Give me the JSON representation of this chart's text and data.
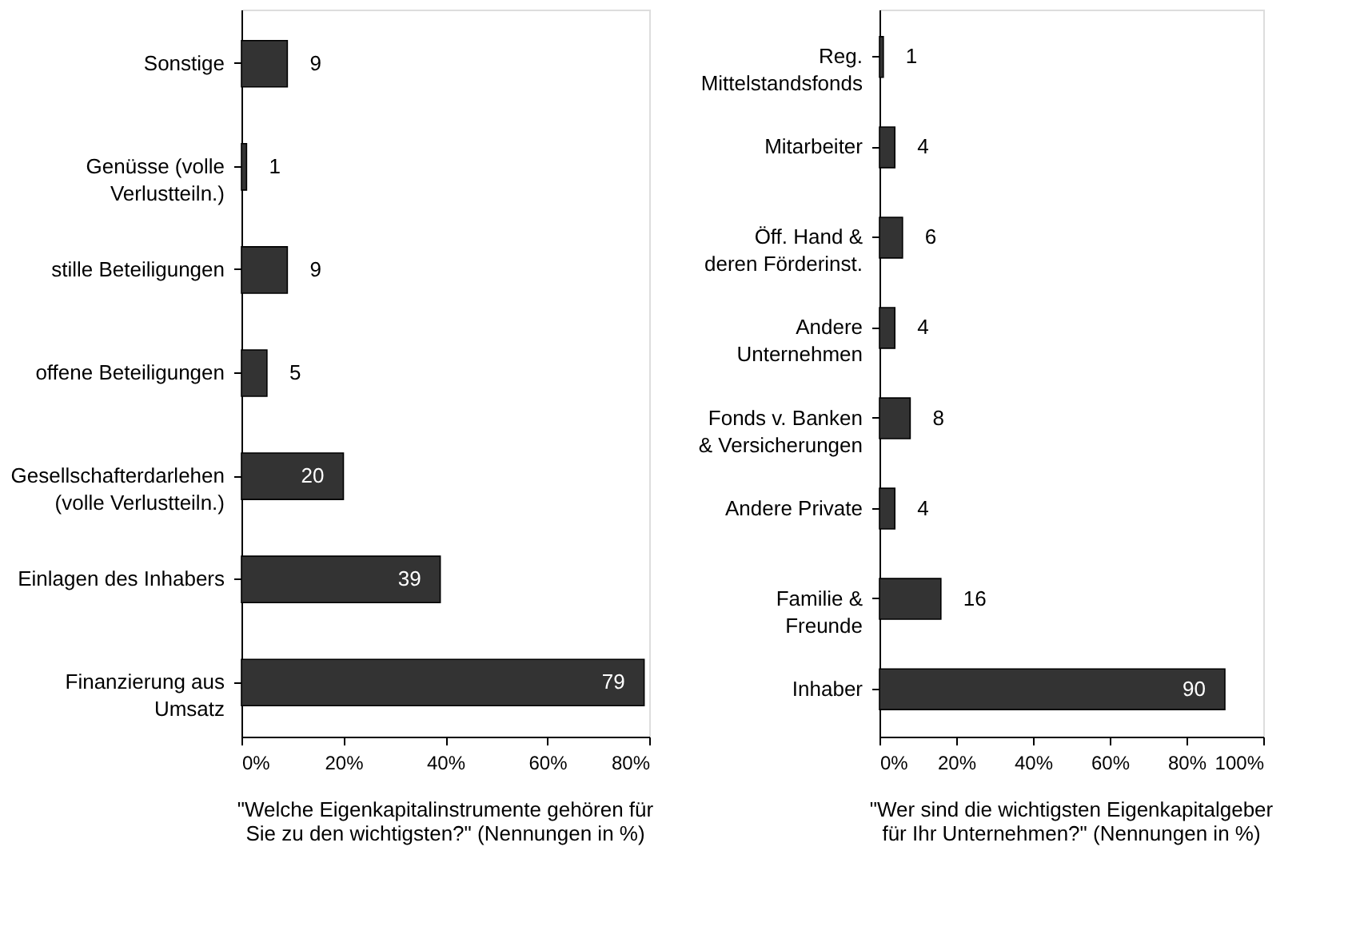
{
  "chart_data": [
    {
      "type": "bar",
      "orientation": "horizontal",
      "title": "\"Welche Eigenkapitalinstrumente gehören für Sie zu den wichtigsten?\" (Nennungen in %)",
      "categories": [
        "Sonstige",
        "Genüsse (volle\nVerlustteiln.)",
        "stille Beteiligungen",
        "offene Beteiligungen",
        "Gesellschafterdarlehen\n(volle Verlustteiln.)",
        "Einlagen des Inhabers",
        "Finanzierung aus\nUmsatz"
      ],
      "values": [
        9,
        1,
        9,
        5,
        20,
        39,
        79
      ],
      "color": "#333333",
      "data_labels": true,
      "grid": false,
      "xlim": [
        0,
        80
      ],
      "xticks": [
        {
          "value": 0,
          "label": "0%"
        },
        {
          "value": 20,
          "label": "20%"
        },
        {
          "value": 40,
          "label": "40%"
        },
        {
          "value": 60,
          "label": "60%"
        },
        {
          "value": 80,
          "label": "80%"
        }
      ]
    },
    {
      "type": "bar",
      "orientation": "horizontal",
      "title": "\"Wer sind die wichtigsten Eigenkapitalgeber für Ihr Unternehmen?\" (Nennungen in %)",
      "categories": [
        "Reg.\nMittelstandsfonds",
        "Mitarbeiter",
        "Öff. Hand &\nderen Förderinst.",
        "Andere\nUnternehmen",
        "Fonds v. Banken\n& Versicherungen",
        "Andere Private",
        "Familie &\nFreunde",
        "Inhaber"
      ],
      "values": [
        1,
        4,
        6,
        4,
        8,
        4,
        16,
        90
      ],
      "color": "#333333",
      "data_labels": true,
      "grid": false,
      "xlim": [
        0,
        100
      ],
      "xticks": [
        {
          "value": 0,
          "label": "0%"
        },
        {
          "value": 20,
          "label": "20%"
        },
        {
          "value": 40,
          "label": "40%"
        },
        {
          "value": 60,
          "label": "60%"
        },
        {
          "value": 80,
          "label": "80%"
        },
        {
          "value": 100,
          "label": "100%"
        }
      ]
    }
  ]
}
